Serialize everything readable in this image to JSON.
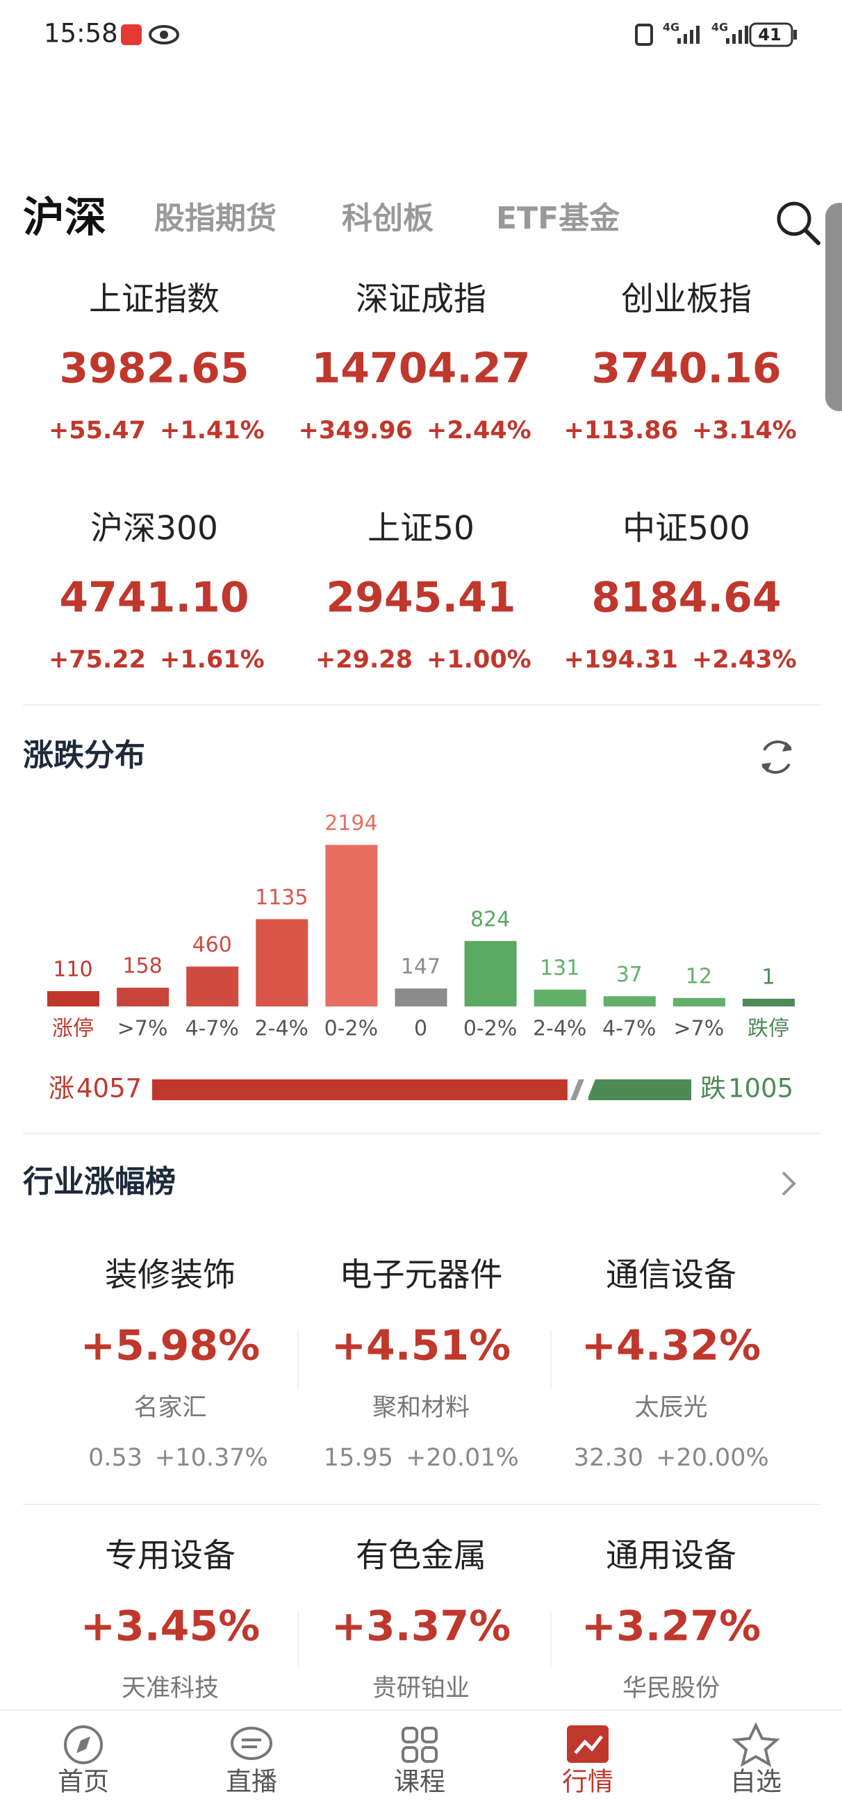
{
  "status_bar": {
    "time": "15:58",
    "network": "4G",
    "battery": "41"
  },
  "tabs": [
    "沪深",
    "股指期货",
    "科创板",
    "ETF基金"
  ],
  "indices": [
    {
      "name": "上证指数",
      "price": "3982.65",
      "change": "+55.47",
      "pct": "+1.41%"
    },
    {
      "name": "深证成指",
      "price": "14704.27",
      "change": "+349.96",
      "pct": "+2.44%"
    },
    {
      "name": "创业板指",
      "price": "3740.16",
      "change": "+113.86",
      "pct": "+3.14%"
    },
    {
      "name": "沪深300",
      "price": "4741.10",
      "change": "+75.22",
      "pct": "+1.61%"
    },
    {
      "name": "上证50",
      "price": "2945.41",
      "change": "+29.28",
      "pct": "+1.00%"
    },
    {
      "name": "中证500",
      "price": "8184.64",
      "change": "+194.31",
      "pct": "+2.43%"
    }
  ],
  "distribution": {
    "title": "涨跌分布",
    "categories": [
      "涨停",
      ">7%",
      "4-7%",
      "2-4%",
      "0-2%",
      "0",
      "0-2%",
      "2-4%",
      "4-7%",
      ">7%",
      "跌停"
    ],
    "values": [
      110,
      158,
      460,
      1135,
      2194,
      147,
      824,
      131,
      37,
      12,
      1
    ],
    "colors": [
      "#c0372c",
      "#c9443a",
      "#d04c41",
      "#d85548",
      "#e86e5f",
      "#8c8c8c",
      "#5aa861",
      "#62b069",
      "#62b069",
      "#62b069",
      "#4e8a58"
    ],
    "up_label": "涨",
    "up_count": 4057,
    "up_color": "#c0372c",
    "down_label": "跌",
    "down_count": 1005,
    "down_color": "#4e8a58"
  },
  "industry": {
    "title": "行业涨幅榜",
    "items": [
      {
        "name": "装修装饰",
        "pct": "+5.98%",
        "stock": "名家汇",
        "price": "0.53",
        "stock_pct": "+10.37%"
      },
      {
        "name": "电子元器件",
        "pct": "+4.51%",
        "stock": "聚和材料",
        "price": "15.95",
        "stock_pct": "+20.01%"
      },
      {
        "name": "通信设备",
        "pct": "+4.32%",
        "stock": "太辰光",
        "price": "32.30",
        "stock_pct": "+20.00%"
      },
      {
        "name": "专用设备",
        "pct": "+3.45%",
        "stock": "天准科技"
      },
      {
        "name": "有色金属",
        "pct": "+3.37%",
        "stock": "贵研铂业"
      },
      {
        "name": "通用设备",
        "pct": "+3.27%",
        "stock": "华民股份"
      }
    ]
  },
  "nav": [
    "首页",
    "直播",
    "课程",
    "行情",
    "自选"
  ]
}
